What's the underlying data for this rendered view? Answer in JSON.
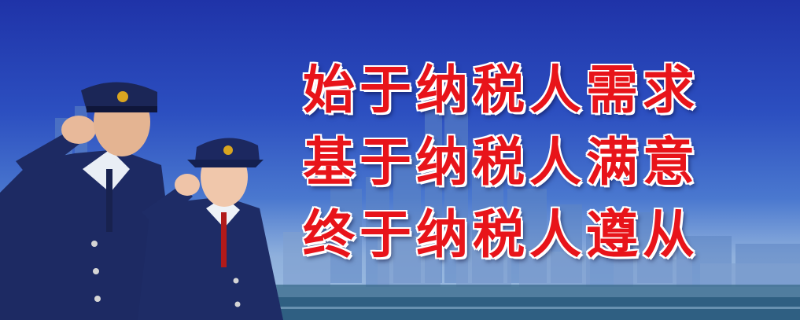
{
  "slogans": [
    "始于纳税人需求",
    "基于纳税人满意",
    "终于纳税人遵从"
  ],
  "colors": {
    "sky_top": "#1f33a8",
    "sky_bottom": "#9fc0e2",
    "slogan_text": "#e8141a",
    "slogan_outline": "#ffffff",
    "uniform": "#1d2a63"
  },
  "icons": [
    "city-skyline",
    "officer-male",
    "officer-female",
    "cap-badge-icon"
  ]
}
